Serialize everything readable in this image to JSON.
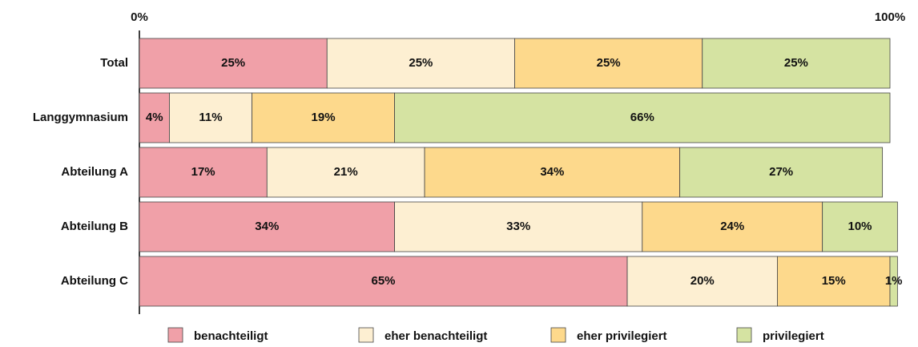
{
  "chart_data": {
    "type": "stacked-barh",
    "categories": [
      "Total",
      "Langgymnasium",
      "Abteilung A",
      "Abteilung B",
      "Abteilung C"
    ],
    "series": [
      {
        "name": "benachteiligt",
        "color": "#f0a0a8",
        "values": [
          25,
          4,
          17,
          34,
          65
        ],
        "value_labels": [
          "25%",
          "4%",
          "17%",
          "34%",
          "65%"
        ]
      },
      {
        "name": "eher benachteiligt",
        "color": "#fdefd2",
        "values": [
          25,
          11,
          21,
          33,
          20
        ],
        "value_labels": [
          "25%",
          "11%",
          "21%",
          "33%",
          "20%"
        ]
      },
      {
        "name": "eher privilegiert",
        "color": "#fdd98c",
        "values": [
          25,
          19,
          34,
          24,
          15
        ],
        "value_labels": [
          "25%",
          "19%",
          "34%",
          "24%",
          "15%"
        ]
      },
      {
        "name": "privilegiert",
        "color": "#d5e3a2",
        "values": [
          25,
          66,
          27,
          10,
          1
        ],
        "value_labels": [
          "25%",
          "66%",
          "27%",
          "10%",
          "1%"
        ]
      }
    ],
    "xlim": [
      0,
      100
    ],
    "xticks": [
      {
        "value": 0,
        "label": "0%"
      },
      {
        "value": 100,
        "label": "100%"
      }
    ]
  }
}
